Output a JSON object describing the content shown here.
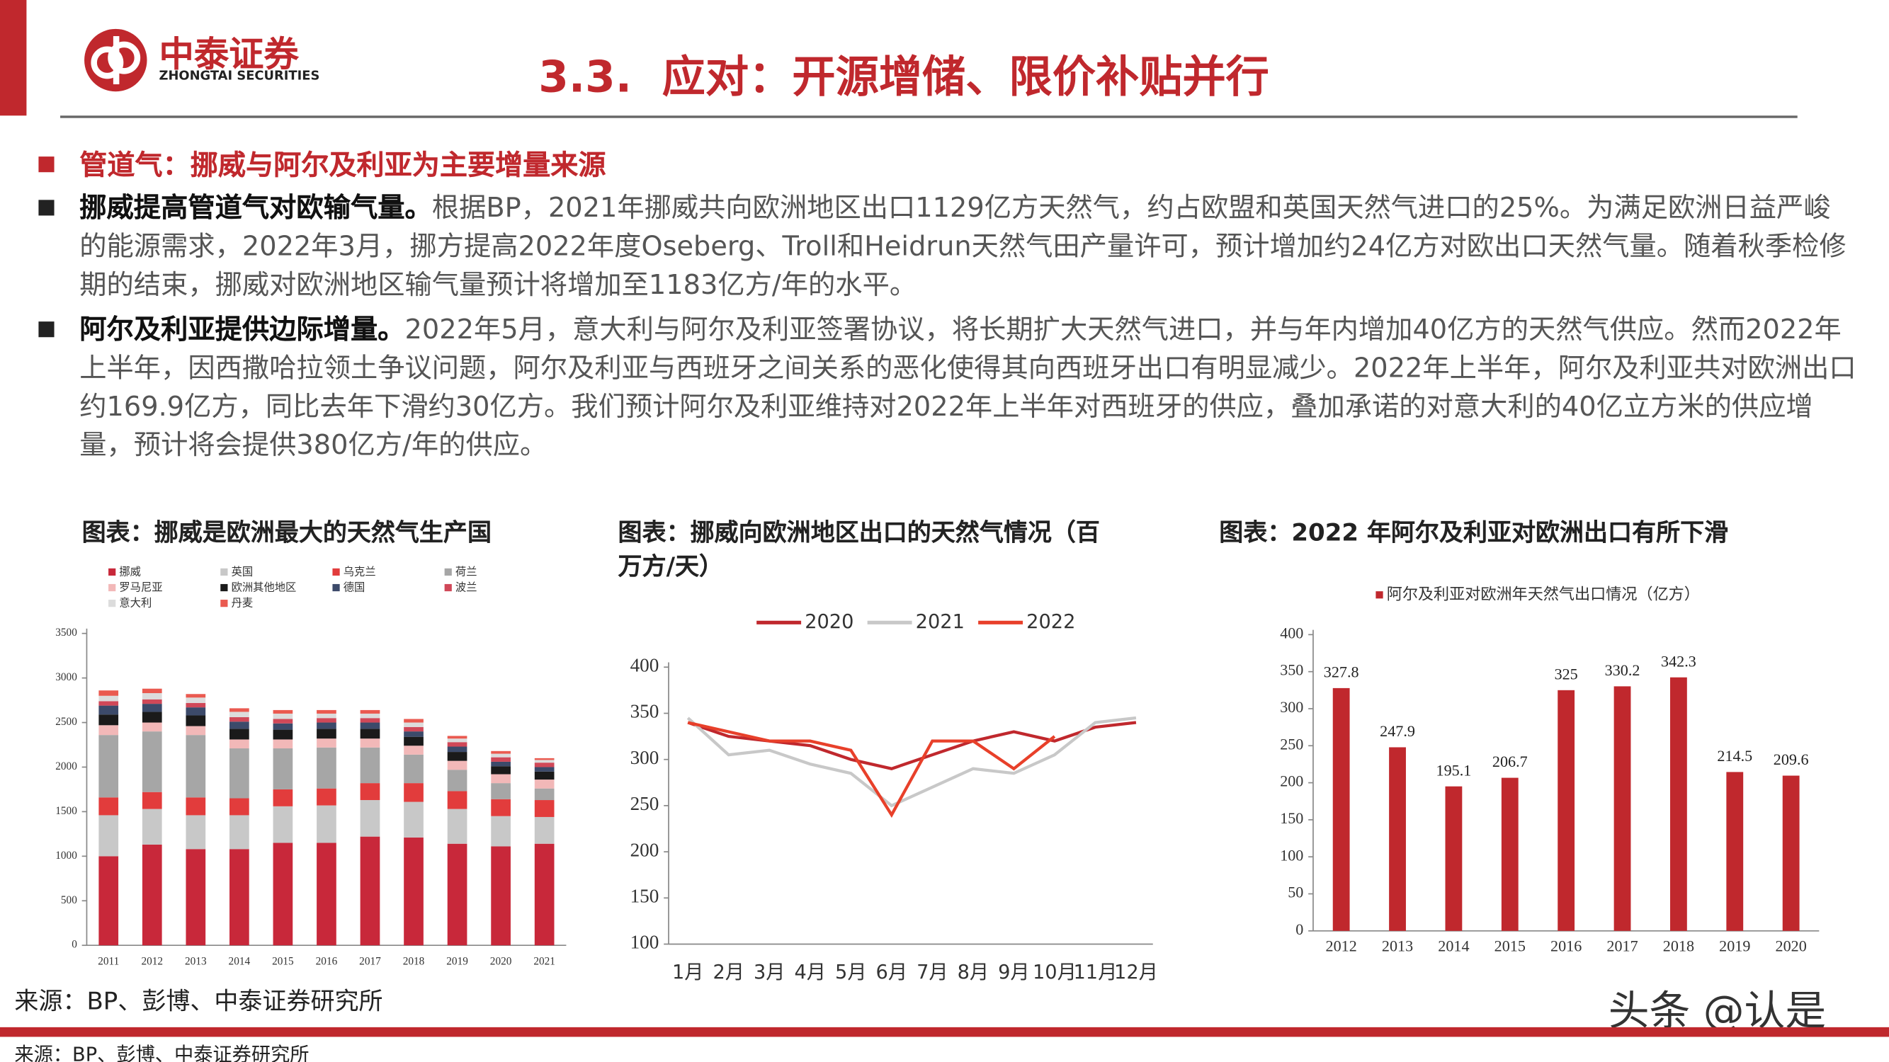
{
  "header": {
    "logo_cn": "中泰证券",
    "logo_en": "ZHONGTAI SECURITIES",
    "title": "3.3.  应对：开源增储、限价补贴并行"
  },
  "section": "管道气：挪威与阿尔及利亚为主要增量来源",
  "bullets": [
    {
      "lead": "挪威提高管道气对欧输气量。",
      "text": "根据BP，2021年挪威共向欧洲地区出口1129亿方天然气，约占欧盟和英国天然气进口的25%。为满足欧洲日益严峻的能源需求，2022年3月，挪方提高2022年度Oseberg、Troll和Heidrun天然气田产量许可，预计增加约24亿方对欧出口天然气量。随着秋季检修期的结束，挪威对欧洲地区输气量预计将增加至1183亿方/年的水平。"
    },
    {
      "lead": "阿尔及利亚提供边际增量。",
      "text": "2022年5月，意大利与阿尔及利亚签署协议，将长期扩大天然气进口，并与年内增加40亿方的天然气供应。然而2022年上半年，因西撒哈拉领土争议问题，阿尔及利亚与西班牙之间关系的恶化使得其向西班牙出口有明显减少。2022年上半年，阿尔及利亚共对欧洲出口约169.9亿方，同比去年下滑约30亿方。我们预计阿尔及利亚维持对2022年上半年对西班牙的供应，叠加承诺的对意大利的40亿立方米的供应增量，预计将会提供380亿方/年的供应。"
    }
  ],
  "chart_data": [
    {
      "type": "bar",
      "stacked": true,
      "title": "图表：挪威是欧洲最大的天然气生产国",
      "categories": [
        "2011",
        "2012",
        "2013",
        "2014",
        "2015",
        "2016",
        "2017",
        "2018",
        "2019",
        "2020",
        "2021"
      ],
      "ylim": [
        0,
        3500
      ],
      "yticks": [
        0,
        500,
        1000,
        1500,
        2000,
        2500,
        3000,
        3500
      ],
      "series": [
        {
          "name": "挪威",
          "color": "#c8283a",
          "values": [
            1000,
            1130,
            1080,
            1080,
            1150,
            1150,
            1220,
            1210,
            1140,
            1110,
            1140
          ]
        },
        {
          "name": "英国",
          "color": "#c8c8c8",
          "values": [
            460,
            400,
            380,
            380,
            410,
            420,
            410,
            400,
            390,
            340,
            300
          ]
        },
        {
          "name": "乌克兰",
          "color": "#e23c3c",
          "values": [
            200,
            190,
            200,
            190,
            190,
            190,
            190,
            210,
            200,
            190,
            190
          ]
        },
        {
          "name": "荷兰",
          "color": "#a6a6a6",
          "values": [
            700,
            680,
            700,
            560,
            460,
            460,
            400,
            320,
            240,
            180,
            130
          ]
        },
        {
          "name": "罗马尼亚",
          "color": "#f2b8b8",
          "values": [
            110,
            100,
            100,
            100,
            100,
            100,
            100,
            100,
            100,
            100,
            100
          ]
        },
        {
          "name": "欧洲其他地区",
          "color": "#1a1a1a",
          "values": [
            120,
            120,
            120,
            120,
            110,
            110,
            110,
            100,
            100,
            90,
            90
          ]
        },
        {
          "name": "德国",
          "color": "#3c4a6a",
          "values": [
            100,
            90,
            90,
            80,
            70,
            70,
            70,
            60,
            60,
            50,
            50
          ]
        },
        {
          "name": "波兰",
          "color": "#d04858",
          "values": [
            50,
            50,
            50,
            50,
            50,
            50,
            50,
            50,
            50,
            50,
            50
          ]
        },
        {
          "name": "意大利",
          "color": "#dcdcdc",
          "values": [
            60,
            70,
            60,
            60,
            60,
            50,
            50,
            50,
            40,
            40,
            30
          ]
        },
        {
          "name": "丹麦",
          "color": "#ea5a50",
          "values": [
            60,
            50,
            40,
            40,
            40,
            40,
            40,
            40,
            30,
            30,
            20
          ]
        }
      ]
    },
    {
      "type": "line",
      "title": "图表：挪威向欧洲地区出口的天然气情况（百万方/天）",
      "categories": [
        "1月",
        "2月",
        "3月",
        "4月",
        "5月",
        "6月",
        "7月",
        "8月",
        "9月",
        "10月",
        "11月",
        "12月"
      ],
      "ylim": [
        100,
        400
      ],
      "yticks": [
        100,
        150,
        200,
        250,
        300,
        350,
        400
      ],
      "series": [
        {
          "name": "2020",
          "color": "#c0282d",
          "values": [
            340,
            325,
            320,
            315,
            300,
            290,
            305,
            320,
            330,
            320,
            335,
            340
          ]
        },
        {
          "name": "2021",
          "color": "#c8c8c8",
          "values": [
            345,
            305,
            310,
            295,
            285,
            250,
            270,
            290,
            285,
            305,
            340,
            345
          ]
        },
        {
          "name": "2022",
          "color": "#e8402a",
          "values": [
            340,
            330,
            320,
            320,
            310,
            240,
            320,
            320,
            290,
            325,
            null,
            null
          ]
        }
      ]
    },
    {
      "type": "bar",
      "title": "图表：2022 年阿尔及利亚对欧洲出口有所下滑",
      "categories": [
        "2012",
        "2013",
        "2014",
        "2015",
        "2016",
        "2017",
        "2018",
        "2019",
        "2020"
      ],
      "ylim": [
        0,
        400
      ],
      "yticks": [
        0,
        50,
        100,
        150,
        200,
        250,
        300,
        350,
        400
      ],
      "series": [
        {
          "name": "阿尔及利亚对欧洲年天然气出口情况（亿方）",
          "color": "#c0282d",
          "values": [
            327.8,
            247.9,
            195.1,
            206.7,
            325,
            330.2,
            342.3,
            214.5,
            209.6
          ]
        }
      ]
    }
  ],
  "source": "来源：BP、彭博、中泰证券研究所",
  "footer_source": "来源：BP、彭博、中泰证券研究所",
  "watermark": "头条 @认是"
}
